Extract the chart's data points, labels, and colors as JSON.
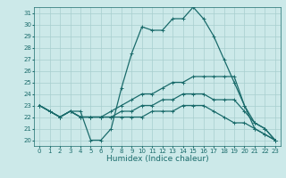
{
  "xlabel": "Humidex (Indice chaleur)",
  "xlim": [
    -0.5,
    23.5
  ],
  "ylim": [
    19.5,
    31.5
  ],
  "xticks": [
    0,
    1,
    2,
    3,
    4,
    5,
    6,
    7,
    8,
    9,
    10,
    11,
    12,
    13,
    14,
    15,
    16,
    17,
    18,
    19,
    20,
    21,
    22,
    23
  ],
  "yticks": [
    20,
    21,
    22,
    23,
    24,
    25,
    26,
    27,
    28,
    29,
    30,
    31
  ],
  "background_color": "#cce9e9",
  "grid_color": "#a8cece",
  "line_color": "#1a6b6b",
  "lines": [
    {
      "x": [
        0,
        1,
        2,
        3,
        4,
        5,
        6,
        7,
        8,
        9,
        10,
        11,
        12,
        13,
        14,
        15,
        16,
        17,
        18,
        19,
        20,
        21,
        22,
        23
      ],
      "y": [
        23.0,
        22.5,
        22.0,
        22.5,
        22.5,
        20.0,
        20.0,
        21.0,
        24.5,
        27.5,
        29.8,
        29.5,
        29.5,
        30.5,
        30.5,
        31.5,
        30.5,
        29.0,
        27.0,
        25.0,
        23.0,
        21.0,
        20.5,
        20.0
      ]
    },
    {
      "x": [
        0,
        1,
        2,
        3,
        4,
        5,
        6,
        7,
        8,
        9,
        10,
        11,
        12,
        13,
        14,
        15,
        16,
        17,
        18,
        19,
        20,
        21,
        22,
        23
      ],
      "y": [
        23.0,
        22.5,
        22.0,
        22.5,
        22.0,
        22.0,
        22.0,
        22.5,
        23.0,
        23.5,
        24.0,
        24.0,
        24.5,
        25.0,
        25.0,
        25.5,
        25.5,
        25.5,
        25.5,
        25.5,
        23.0,
        21.5,
        21.0,
        20.0
      ]
    },
    {
      "x": [
        0,
        1,
        2,
        3,
        4,
        5,
        6,
        7,
        8,
        9,
        10,
        11,
        12,
        13,
        14,
        15,
        16,
        17,
        18,
        19,
        20,
        21,
        22,
        23
      ],
      "y": [
        23.0,
        22.5,
        22.0,
        22.5,
        22.0,
        22.0,
        22.0,
        22.0,
        22.5,
        22.5,
        23.0,
        23.0,
        23.5,
        23.5,
        24.0,
        24.0,
        24.0,
        23.5,
        23.5,
        23.5,
        22.5,
        21.5,
        21.0,
        20.0
      ]
    },
    {
      "x": [
        0,
        1,
        2,
        3,
        4,
        5,
        6,
        7,
        8,
        9,
        10,
        11,
        12,
        13,
        14,
        15,
        16,
        17,
        18,
        19,
        20,
        21,
        22,
        23
      ],
      "y": [
        23.0,
        22.5,
        22.0,
        22.5,
        22.0,
        22.0,
        22.0,
        22.0,
        22.0,
        22.0,
        22.0,
        22.5,
        22.5,
        22.5,
        23.0,
        23.0,
        23.0,
        22.5,
        22.0,
        21.5,
        21.5,
        21.0,
        20.5,
        20.0
      ]
    }
  ],
  "marker": "+",
  "marker_size": 3,
  "linewidth": 0.9,
  "tick_fontsize": 5,
  "xlabel_fontsize": 6.5
}
